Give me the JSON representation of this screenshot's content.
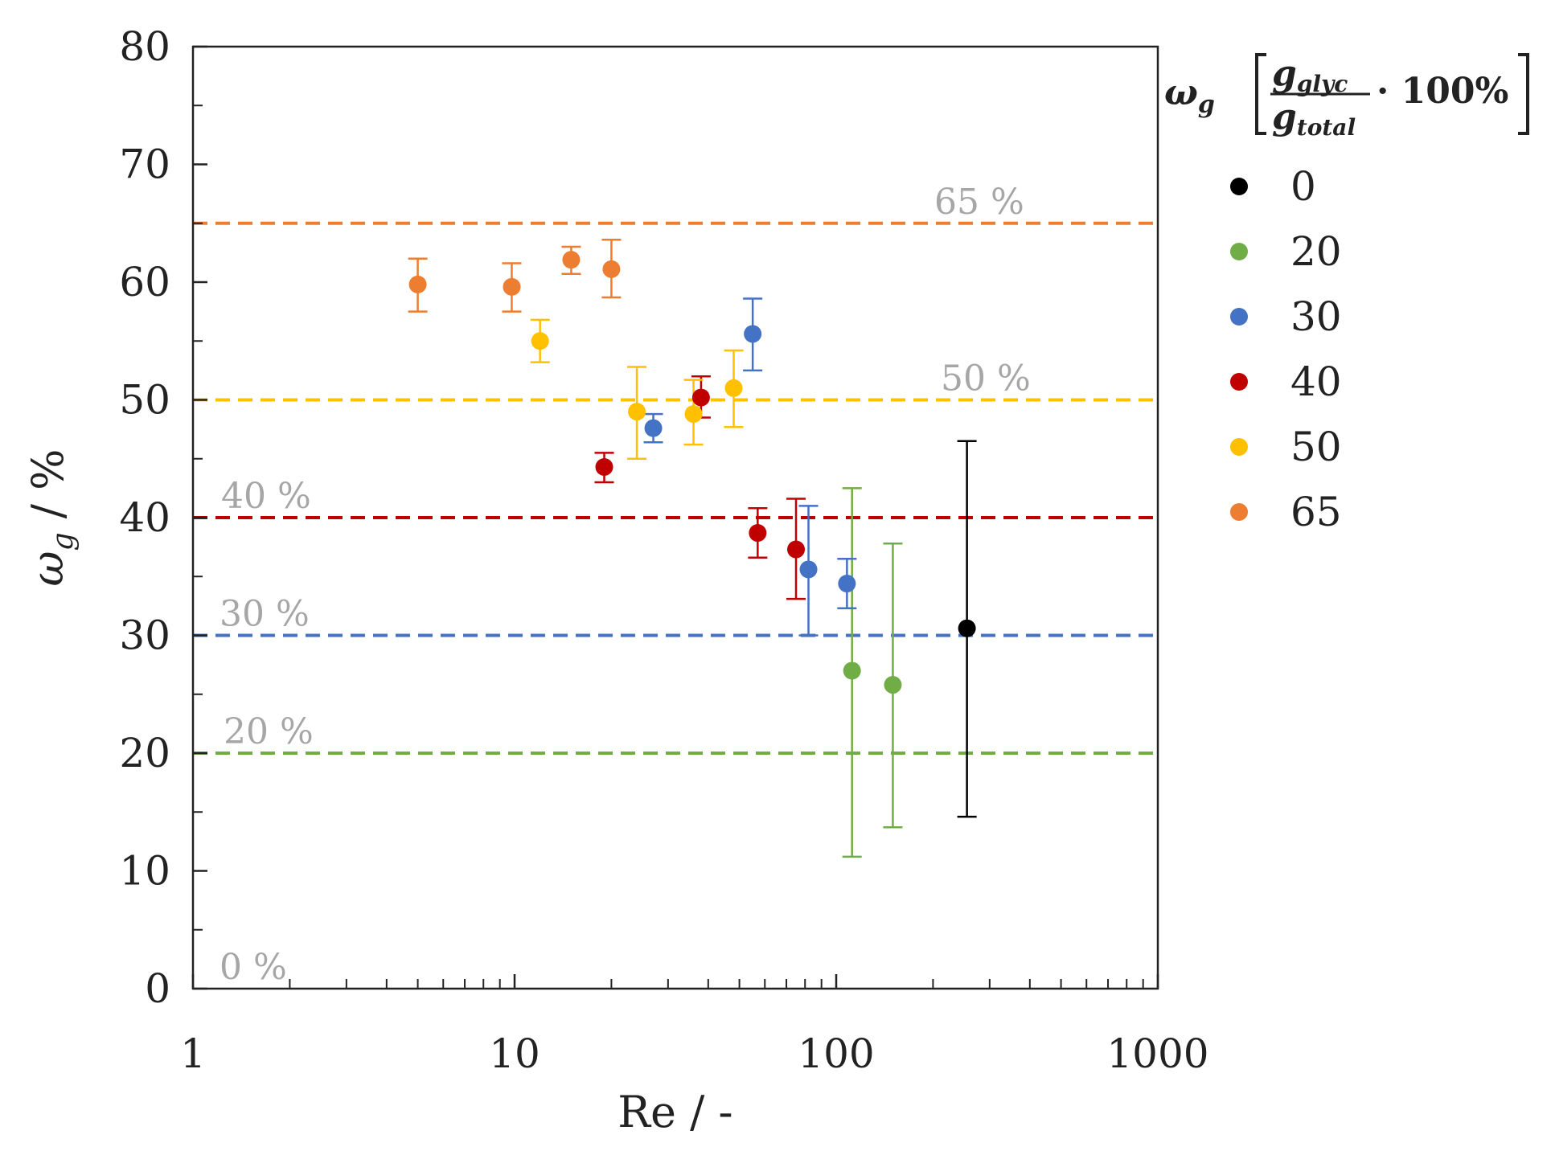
{
  "chart_data": {
    "type": "scatter",
    "title": "",
    "xlabel": "Re / -",
    "ylabel": "ω_g / %",
    "xscale": "log",
    "xlim": [
      1,
      1000
    ],
    "ylim": [
      0,
      80
    ],
    "x_ticks": [
      1,
      10,
      100,
      1000
    ],
    "x_tick_labels": [
      "1",
      "10",
      "100",
      "1000"
    ],
    "y_ticks": [
      0,
      10,
      20,
      30,
      40,
      50,
      60,
      70,
      80
    ],
    "y_tick_labels": [
      "0",
      "10",
      "20",
      "30",
      "40",
      "50",
      "60",
      "70",
      "80"
    ],
    "grid": false,
    "legend_position": "right, outside plot",
    "legend_title": {
      "symbol": "ω",
      "symbol_sub": "g",
      "numerator": "g",
      "numerator_sub": "glyc",
      "denominator": "g",
      "denominator_sub": "total",
      "factor": "· 100%"
    },
    "reference_lines": [
      {
        "y": 65,
        "label": "65 %",
        "color": "#ed7d31"
      },
      {
        "y": 50,
        "label": "50 %",
        "color": "#ffc000"
      },
      {
        "y": 40,
        "label": "40 %",
        "color": "#c00000"
      },
      {
        "y": 30,
        "label": "30 %",
        "color": "#4472c4"
      },
      {
        "y": 20,
        "label": "20 %",
        "color": "#70ad47"
      },
      {
        "y": 0,
        "label": "0 %",
        "color": "#a6a6a6"
      }
    ],
    "series": [
      {
        "name": "0",
        "color": "#000000",
        "points": [
          {
            "x": 255,
            "y": 30.6,
            "lo": 14.6,
            "hi": 46.5
          }
        ]
      },
      {
        "name": "20",
        "color": "#70ad47",
        "points": [
          {
            "x": 112,
            "y": 27.0,
            "lo": 11.2,
            "hi": 42.5
          },
          {
            "x": 150,
            "y": 25.8,
            "lo": 13.7,
            "hi": 37.8
          }
        ]
      },
      {
        "name": "30",
        "color": "#4472c4",
        "points": [
          {
            "x": 27,
            "y": 47.6,
            "lo": 46.4,
            "hi": 48.8
          },
          {
            "x": 55,
            "y": 55.6,
            "lo": 52.5,
            "hi": 58.6
          },
          {
            "x": 82,
            "y": 35.6,
            "lo": 30.0,
            "hi": 41.0
          },
          {
            "x": 108,
            "y": 34.4,
            "lo": 32.3,
            "hi": 36.5
          }
        ]
      },
      {
        "name": "40",
        "color": "#c00000",
        "points": [
          {
            "x": 19,
            "y": 44.3,
            "lo": 43.0,
            "hi": 45.5
          },
          {
            "x": 38,
            "y": 50.2,
            "lo": 48.5,
            "hi": 52.0
          },
          {
            "x": 57,
            "y": 38.7,
            "lo": 36.6,
            "hi": 40.8
          },
          {
            "x": 75,
            "y": 37.3,
            "lo": 33.1,
            "hi": 41.6
          }
        ]
      },
      {
        "name": "50",
        "color": "#ffc000",
        "points": [
          {
            "x": 12,
            "y": 55.0,
            "lo": 53.2,
            "hi": 56.8
          },
          {
            "x": 24,
            "y": 49.0,
            "lo": 45.0,
            "hi": 52.8
          },
          {
            "x": 36,
            "y": 48.8,
            "lo": 46.2,
            "hi": 51.7
          },
          {
            "x": 48,
            "y": 51.0,
            "lo": 47.7,
            "hi": 54.2
          }
        ]
      },
      {
        "name": "65",
        "color": "#ed7d31",
        "points": [
          {
            "x": 5,
            "y": 59.8,
            "lo": 57.5,
            "hi": 62.0
          },
          {
            "x": 9.8,
            "y": 59.6,
            "lo": 57.5,
            "hi": 61.6
          },
          {
            "x": 15,
            "y": 61.9,
            "lo": 60.7,
            "hi": 63.0
          },
          {
            "x": 20,
            "y": 61.1,
            "lo": 58.7,
            "hi": 63.6
          }
        ]
      }
    ]
  }
}
